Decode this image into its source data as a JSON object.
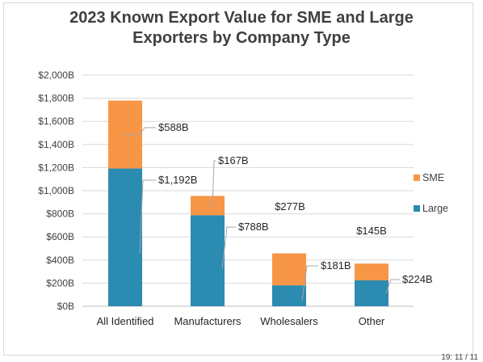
{
  "chart_data": {
    "type": "bar",
    "stacked": true,
    "title_line1": "2023 Known Export Value for SME and Large",
    "title_line2": "Exporters by Company Type",
    "categories": [
      "All Identified",
      "Manufacturers",
      "Wholesalers",
      "Other"
    ],
    "series": [
      {
        "name": "Large",
        "color": "#2b8bb0",
        "values": [
          1192,
          788,
          181,
          224
        ],
        "labels": [
          "$1,192B",
          "$788B",
          "$181B",
          "$224B"
        ]
      },
      {
        "name": "SME",
        "color": "#f79646",
        "values": [
          588,
          167,
          277,
          145
        ],
        "labels": [
          "$588B",
          "$167B",
          "$277B",
          "$145B"
        ]
      }
    ],
    "ylim": [
      0,
      2000
    ],
    "yticks": [
      0,
      200,
      400,
      600,
      800,
      1000,
      1200,
      1400,
      1600,
      1800,
      2000
    ],
    "ytick_labels": [
      "$0B",
      "$200B",
      "$400B",
      "$600B",
      "$800B",
      "$1,000B",
      "$1,200B",
      "$1,400B",
      "$1,600B",
      "$1,800B",
      "$2,000B"
    ],
    "grid": true,
    "legend_position": "right"
  },
  "footer_fragment": "19: 11 / 11"
}
